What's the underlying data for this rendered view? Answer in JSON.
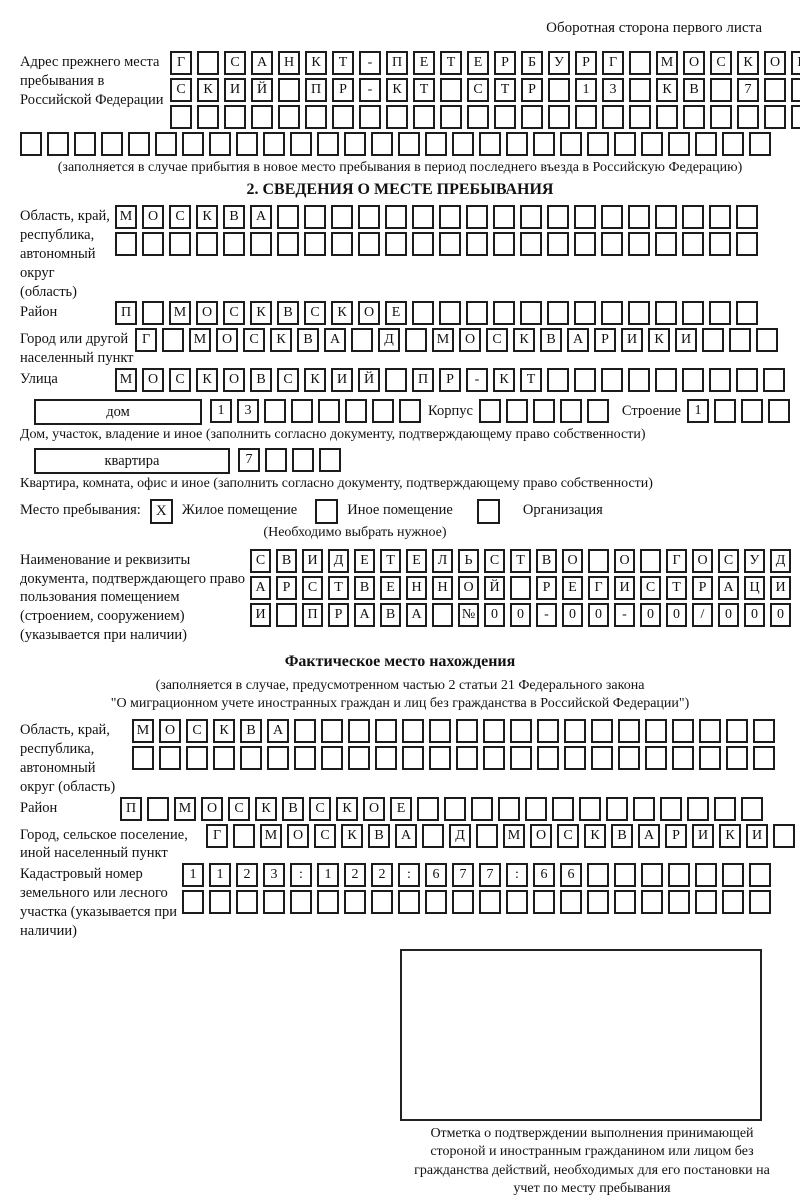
{
  "header": {
    "backside_note": "Оборотная сторона первого листа"
  },
  "prev_address": {
    "label": "Адрес прежнего места пребывания в Российской Федерации",
    "rows": [
      {
        "text": "Г САНКТ-ПЕТЕРБУРГ МОСКОВ",
        "len": 24
      },
      {
        "text": "СКИЙ ПР-КТ СТР 13 КВ 7",
        "len": 24
      },
      {
        "text": "",
        "len": 24
      },
      {
        "text": "",
        "len": 28
      }
    ],
    "note": "(заполняется в случае прибытия в новое место пребывания в период последнего въезда в Российскую Федерацию)"
  },
  "section2": {
    "title": "2. СВЕДЕНИЯ О МЕСТЕ ПРЕБЫВАНИЯ",
    "region": {
      "label": "Область, край, республика, автономный округ (область)",
      "rows": [
        {
          "text": "МОСКВА",
          "len": 24
        },
        {
          "text": "",
          "len": 24
        }
      ]
    },
    "district": {
      "label": "Район",
      "rows": [
        {
          "text": "П МОСКВСКОЕ",
          "len": 24
        }
      ]
    },
    "city": {
      "label": "Город или другой населенный пункт",
      "rows": [
        {
          "text": "Г МОСКВА Д МОСКВАРИКИ",
          "len": 24
        }
      ]
    },
    "street": {
      "label": "Улица",
      "rows": [
        {
          "text": "МОСКОВСКИЙ ПР-КТ",
          "len": 25
        }
      ]
    },
    "house_row": {
      "house_label": "дом",
      "house_cells": {
        "text": "13",
        "len": 8
      },
      "block_label": "Корпус",
      "block_cells": {
        "text": "",
        "len": 5
      },
      "building_label": "Строение",
      "building_cells": {
        "text": "1",
        "len": 4
      },
      "note": "Дом, участок, владение и иное (заполнить согласно документу, подтверждающему право собственности)"
    },
    "apartment_row": {
      "apt_label": "квартира",
      "apt_cells": {
        "text": "7",
        "len": 4
      },
      "note": "Квартира, комната, офис и иное (заполнить согласно документу, подтверждающему право собственности)"
    },
    "place_type": {
      "label": "Место пребывания:",
      "options": [
        {
          "label": "Жилое помещение",
          "checked": "X"
        },
        {
          "label": "Иное помещение",
          "checked": ""
        },
        {
          "label": "Организация",
          "checked": ""
        }
      ],
      "note": "(Необходимо выбрать нужное)"
    },
    "document": {
      "label": "Наименование и реквизиты документа, подтверждающего право пользования помещением (строением, сооружением) (указывается при наличии)",
      "rows": [
        {
          "text": "СВИДЕТЕЛЬСТВО О ГОСУД",
          "len": 21
        },
        {
          "text": "АРСТВЕННОЙ РЕГИСТРАЦИ",
          "len": 21
        },
        {
          "text": "И ПРАВА №00-00-00/000",
          "len": 21
        }
      ]
    }
  },
  "factual": {
    "title": "Фактическое место нахождения",
    "note_line1": "(заполняется в случае, предусмотренном частью 2 статьи 21 Федерального закона",
    "note_line2": "\"О миграционном учете иностранных граждан и лиц без гражданства в Российской Федерации\")",
    "region": {
      "label": "Область, край, республика, автономный округ (область)",
      "rows": [
        {
          "text": "МОСКВА",
          "len": 24
        },
        {
          "text": "",
          "len": 24
        }
      ]
    },
    "district": {
      "label": "Район",
      "rows": [
        {
          "text": "П МОСКВСКОЕ",
          "len": 24
        }
      ]
    },
    "city": {
      "label": "Город, сельское поселение, иной населенный пункт",
      "rows": [
        {
          "text": "Г МОСКВА Д МОСКВАРИКИ",
          "len": 22
        }
      ]
    },
    "cadastral": {
      "label": "Кадастровый номер земельного или лесного участка (указывается при наличии)",
      "rows": [
        {
          "text": "1123:122:677:66",
          "len": 22
        },
        {
          "text": "",
          "len": 22
        }
      ]
    },
    "stamp": {
      "caption": "Отметка о подтверждении выполнения принимающей стороной и иностранным гражданином или лицом без гражданства действий, необходимых для его постановки на учет по месту пребывания"
    }
  }
}
